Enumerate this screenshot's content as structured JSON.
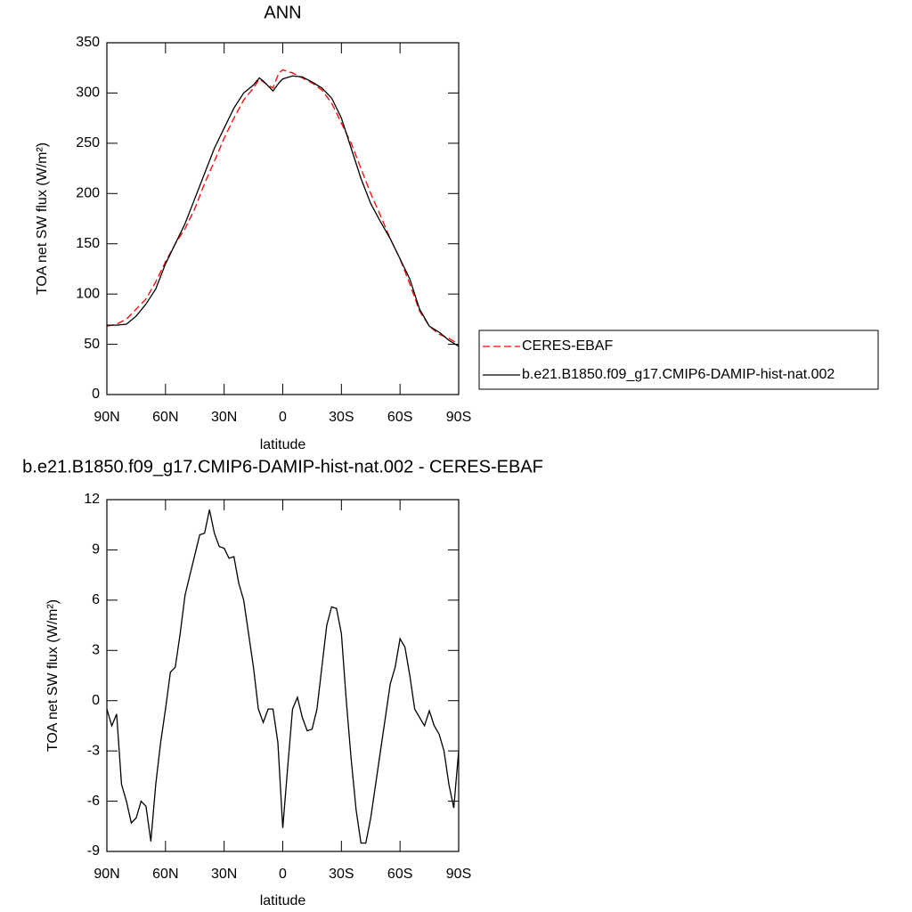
{
  "chart_data": [
    {
      "type": "line",
      "title": "ANN",
      "x_label": "latitude",
      "y_label": "TOA net SW flux (W/m²)",
      "x": [
        90,
        85,
        80,
        75,
        70,
        65,
        60,
        55,
        50,
        45,
        40,
        35,
        30,
        25,
        20,
        15,
        12,
        10,
        5,
        2,
        0,
        -5,
        -10,
        -15,
        -20,
        -25,
        -30,
        -35,
        -40,
        -45,
        -50,
        -55,
        -60,
        -65,
        -70,
        -75,
        -80,
        -85,
        -90
      ],
      "series": [
        {
          "name": "CERES-EBAF",
          "color": "#ff0000",
          "dashed": true,
          "values": [
            68,
            70,
            75,
            85,
            95,
            112,
            132,
            150,
            165,
            185,
            210,
            232,
            255,
            275,
            293,
            305,
            314,
            311,
            305,
            320,
            323,
            320,
            315,
            310,
            303,
            290,
            270,
            250,
            225,
            200,
            178,
            155,
            135,
            110,
            83,
            68,
            60,
            56,
            50
          ]
        },
        {
          "name": "b.e21.B1850.f09_g17.CMIP6-DAMIP-hist-nat.002",
          "color": "#000000",
          "dashed": false,
          "values": [
            69,
            69,
            70,
            78,
            90,
            105,
            130,
            150,
            170,
            195,
            220,
            245,
            265,
            285,
            300,
            308,
            315,
            312,
            302,
            310,
            314,
            317,
            316,
            311,
            305,
            295,
            275,
            245,
            215,
            190,
            172,
            155,
            135,
            115,
            85,
            68,
            62,
            54,
            48
          ]
        }
      ],
      "xlim": [
        90,
        -90
      ],
      "xticks": [
        {
          "value": 90,
          "label": "90N"
        },
        {
          "value": 60,
          "label": "60N"
        },
        {
          "value": 30,
          "label": "30N"
        },
        0,
        {
          "value": -30,
          "label": "30S"
        },
        {
          "value": -60,
          "label": "60S"
        },
        {
          "value": -90,
          "label": "90S"
        }
      ],
      "ylim": [
        0,
        350
      ],
      "yticks": [
        0,
        50,
        100,
        150,
        200,
        250,
        300,
        350
      ],
      "legend": "right"
    },
    {
      "type": "line",
      "title": "b.e21.B1850.f09_g17.CMIP6-DAMIP-hist-nat.002 - CERES-EBAF",
      "x_label": "latitude",
      "y_label": "TOA net SW flux (W/m²)",
      "x": [
        90,
        87.5,
        85,
        82.5,
        80,
        77.5,
        75,
        72.5,
        70,
        67.5,
        65,
        62.5,
        60,
        57.5,
        55,
        52.5,
        50,
        47.5,
        45,
        42.5,
        40,
        37.5,
        35,
        32.5,
        30,
        27.5,
        25,
        22.5,
        20,
        17.5,
        15,
        12.5,
        10,
        7.5,
        5,
        2.5,
        0,
        -2.5,
        -5,
        -7.5,
        -10,
        -12.5,
        -15,
        -17.5,
        -20,
        -22.5,
        -25,
        -27.5,
        -30,
        -32.5,
        -35,
        -37.5,
        -40,
        -42.5,
        -45,
        -47.5,
        -50,
        -52.5,
        -55,
        -57.5,
        -60,
        -62.5,
        -65,
        -67.5,
        -70,
        -72.5,
        -75,
        -77.5,
        -80,
        -82.5,
        -85,
        -87.5,
        -90
      ],
      "series": [
        {
          "color": "#000000",
          "dashed": false,
          "values": [
            -0.5,
            -1.5,
            -0.8,
            -5,
            -6,
            -7.3,
            -7,
            -6,
            -6.3,
            -8.4,
            -5,
            -2.5,
            -0.5,
            1.7,
            2,
            4,
            6.3,
            7.5,
            8.7,
            9.9,
            10,
            11.4,
            10,
            9.2,
            9.1,
            8.5,
            8.6,
            7,
            6,
            4,
            2,
            -0.5,
            -1.3,
            -0.5,
            -0.5,
            -2.5,
            -7.6,
            -4,
            -0.5,
            0.2,
            -1,
            -1.8,
            -1.7,
            -0.5,
            2,
            4.5,
            5.6,
            5.5,
            4,
            0,
            -3.5,
            -6.5,
            -8.5,
            -8.5,
            -7,
            -5,
            -3,
            -1,
            1,
            2,
            3.7,
            3.2,
            1.5,
            -0.5,
            -1,
            -1.5,
            -0.6,
            -1.5,
            -2,
            -3,
            -5,
            -6.4,
            -3
          ]
        }
      ],
      "xlim": [
        90,
        -90
      ],
      "xticks": [
        {
          "value": 90,
          "label": "90N"
        },
        {
          "value": 60,
          "label": "60N"
        },
        {
          "value": 30,
          "label": "30N"
        },
        0,
        {
          "value": -30,
          "label": "30S"
        },
        {
          "value": -60,
          "label": "60S"
        },
        {
          "value": -90,
          "label": "90S"
        }
      ],
      "ylim": [
        -9,
        12
      ],
      "yticks": [
        -9,
        -6,
        -3,
        0,
        3,
        6,
        9,
        12
      ]
    }
  ]
}
